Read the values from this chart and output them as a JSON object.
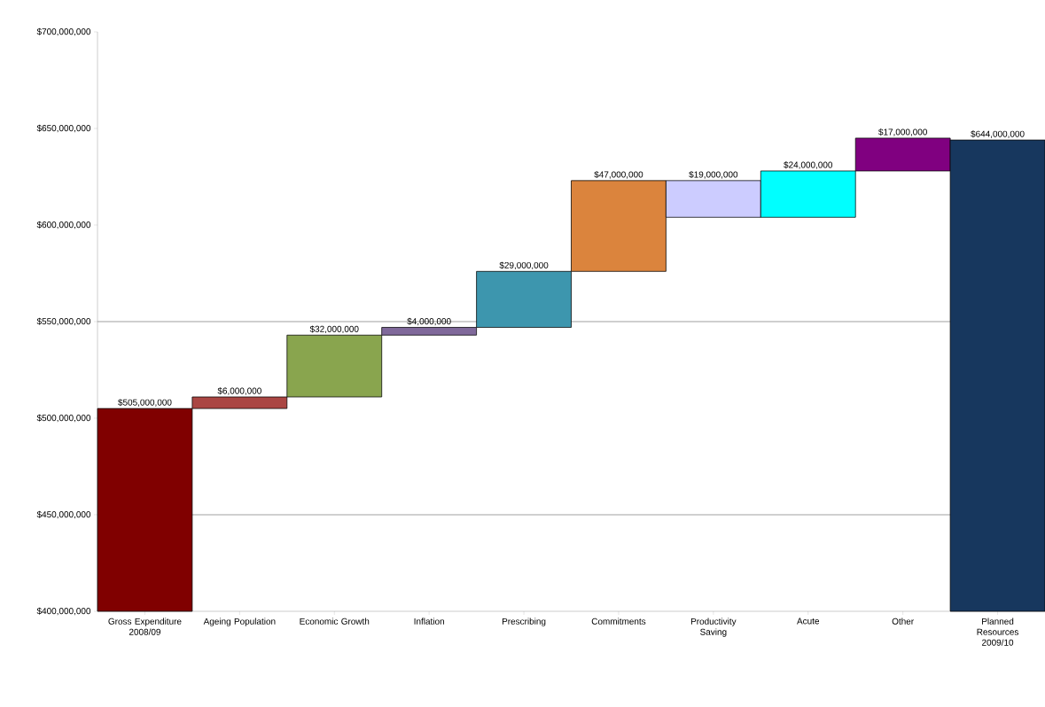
{
  "chart_data": {
    "type": "bar",
    "categories": [
      "Gross Expenditure 2008/09",
      "Ageing Population",
      "Economic Growth",
      "Inflation",
      "Prescribing",
      "Commitments",
      "Productivity Saving",
      "Acute",
      "Other",
      "Planned Resources 2009/10"
    ],
    "values": [
      505000000,
      6000000,
      32000000,
      4000000,
      29000000,
      47000000,
      -19000000,
      24000000,
      17000000,
      644000000
    ],
    "base": [
      null,
      505000000,
      511000000,
      543000000,
      547000000,
      576000000,
      623000000,
      604000000,
      628000000,
      null
    ],
    "colors": [
      "#800000",
      "#aa4643",
      "#89a54e",
      "#80699b",
      "#3d96ae",
      "#db843d",
      "#ccccff",
      "#00ffff",
      "#800080",
      "#17375e"
    ],
    "value_labels": [
      "$505,000,000",
      "$6,000,000",
      "$32,000,000",
      "$4,000,000",
      "$29,000,000",
      "$47,000,000",
      "$19,000,000",
      "$24,000,000",
      "$17,000,000",
      "$644,000,000"
    ],
    "ylim": [
      400000000,
      700000000
    ],
    "yticks": [
      {
        "value": 400000000,
        "label": "$400,000,000"
      },
      {
        "value": 450000000,
        "label": "$450,000,000"
      },
      {
        "value": 500000000,
        "label": "$500,000,000"
      },
      {
        "value": 550000000,
        "label": "$550,000,000"
      },
      {
        "value": 600000000,
        "label": "$600,000,000"
      },
      {
        "value": 650000000,
        "label": "$650,000,000"
      },
      {
        "value": 700000000,
        "label": "$700,000,000"
      }
    ],
    "ref_lines": [
      {
        "axis": "y",
        "value": 450000000,
        "color": "#808080"
      },
      {
        "axis": "y",
        "value": 550000000,
        "color": "#808080"
      }
    ],
    "grid": false
  }
}
